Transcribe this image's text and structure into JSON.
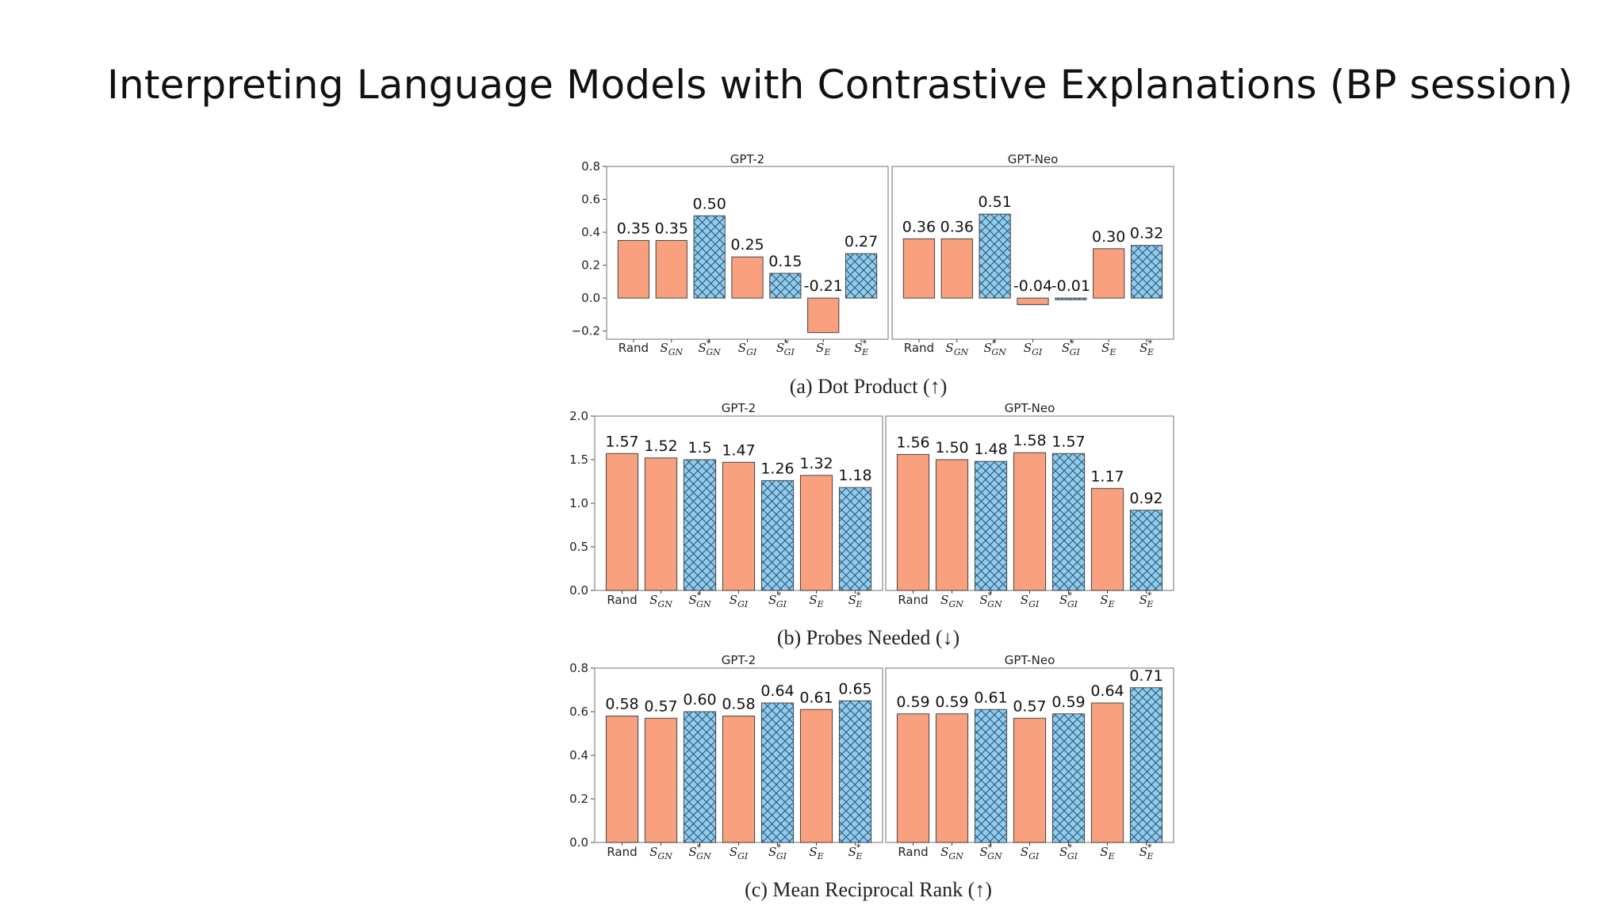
{
  "slide": {
    "title": "Interpreting Language Models with Contrastive Explanations (BP session)"
  },
  "colors": {
    "orange": "#F9A07E",
    "blue": "#8ECCF0",
    "edge": "#444444",
    "hatch": "#2f4f66"
  },
  "chart_data": [
    {
      "type": "bar",
      "caption": "(a) Dot Product (↑)",
      "categories": [
        "Rand",
        "SGN",
        "S*GN",
        "SGI",
        "S*GI",
        "SE",
        "S*E"
      ],
      "category_styles": [
        "orange",
        "orange",
        "blue-hatched",
        "orange",
        "blue-hatched",
        "orange",
        "blue-hatched"
      ],
      "ylim": [
        -0.25,
        0.8
      ],
      "yticks": [
        -0.2,
        0.0,
        0.2,
        0.4,
        0.6,
        0.8
      ],
      "ytick_labels": [
        "−0.2",
        "0.0",
        "0.2",
        "0.4",
        "0.6",
        "0.8"
      ],
      "grid": false,
      "panels": [
        {
          "title": "GPT-2",
          "values": [
            0.35,
            0.35,
            0.5,
            0.25,
            0.15,
            -0.21,
            0.27
          ],
          "labels": [
            "0.35",
            "0.35",
            "0.50",
            "0.25",
            "0.15",
            "-0.21",
            "0.27"
          ]
        },
        {
          "title": "GPT-Neo",
          "values": [
            0.36,
            0.36,
            0.51,
            -0.04,
            -0.01,
            0.3,
            0.32
          ],
          "labels": [
            "0.36",
            "0.36",
            "0.51",
            "-0.04",
            "-0.01",
            "0.30",
            "0.32"
          ]
        }
      ]
    },
    {
      "type": "bar",
      "caption": "(b) Probes Needed (↓)",
      "categories": [
        "Rand",
        "SGN",
        "S*GN",
        "SGI",
        "S*GI",
        "SE",
        "S*E"
      ],
      "category_styles": [
        "orange",
        "orange",
        "blue-hatched",
        "orange",
        "blue-hatched",
        "orange",
        "blue-hatched"
      ],
      "ylim": [
        0.0,
        2.0
      ],
      "yticks": [
        0.0,
        0.5,
        1.0,
        1.5,
        2.0
      ],
      "ytick_labels": [
        "0.0",
        "0.5",
        "1.0",
        "1.5",
        "2.0"
      ],
      "grid": false,
      "panels": [
        {
          "title": "GPT-2",
          "values": [
            1.57,
            1.52,
            1.5,
            1.47,
            1.26,
            1.32,
            1.18
          ],
          "labels": [
            "1.57",
            "1.52",
            "1.5",
            "1.47",
            "1.26",
            "1.32",
            "1.18"
          ]
        },
        {
          "title": "GPT-Neo",
          "values": [
            1.56,
            1.5,
            1.48,
            1.58,
            1.57,
            1.17,
            0.92
          ],
          "labels": [
            "1.56",
            "1.50",
            "1.48",
            "1.58",
            "1.57",
            "1.17",
            "0.92"
          ]
        }
      ]
    },
    {
      "type": "bar",
      "caption": "(c) Mean Reciprocal Rank (↑)",
      "categories": [
        "Rand",
        "SGN",
        "S*GN",
        "SGI",
        "S*GI",
        "SE",
        "S*E"
      ],
      "category_styles": [
        "orange",
        "orange",
        "blue-hatched",
        "orange",
        "blue-hatched",
        "orange",
        "blue-hatched"
      ],
      "ylim": [
        0.0,
        0.8
      ],
      "yticks": [
        0.0,
        0.2,
        0.4,
        0.6,
        0.8
      ],
      "ytick_labels": [
        "0.0",
        "0.2",
        "0.4",
        "0.6",
        "0.8"
      ],
      "grid": false,
      "panels": [
        {
          "title": "GPT-2",
          "values": [
            0.58,
            0.57,
            0.6,
            0.58,
            0.64,
            0.61,
            0.65
          ],
          "labels": [
            "0.58",
            "0.57",
            "0.60",
            "0.58",
            "0.64",
            "0.61",
            "0.65"
          ]
        },
        {
          "title": "GPT-Neo",
          "values": [
            0.59,
            0.59,
            0.61,
            0.57,
            0.59,
            0.64,
            0.71
          ],
          "labels": [
            "0.59",
            "0.59",
            "0.61",
            "0.57",
            "0.59",
            "0.64",
            "0.71"
          ]
        }
      ]
    }
  ]
}
